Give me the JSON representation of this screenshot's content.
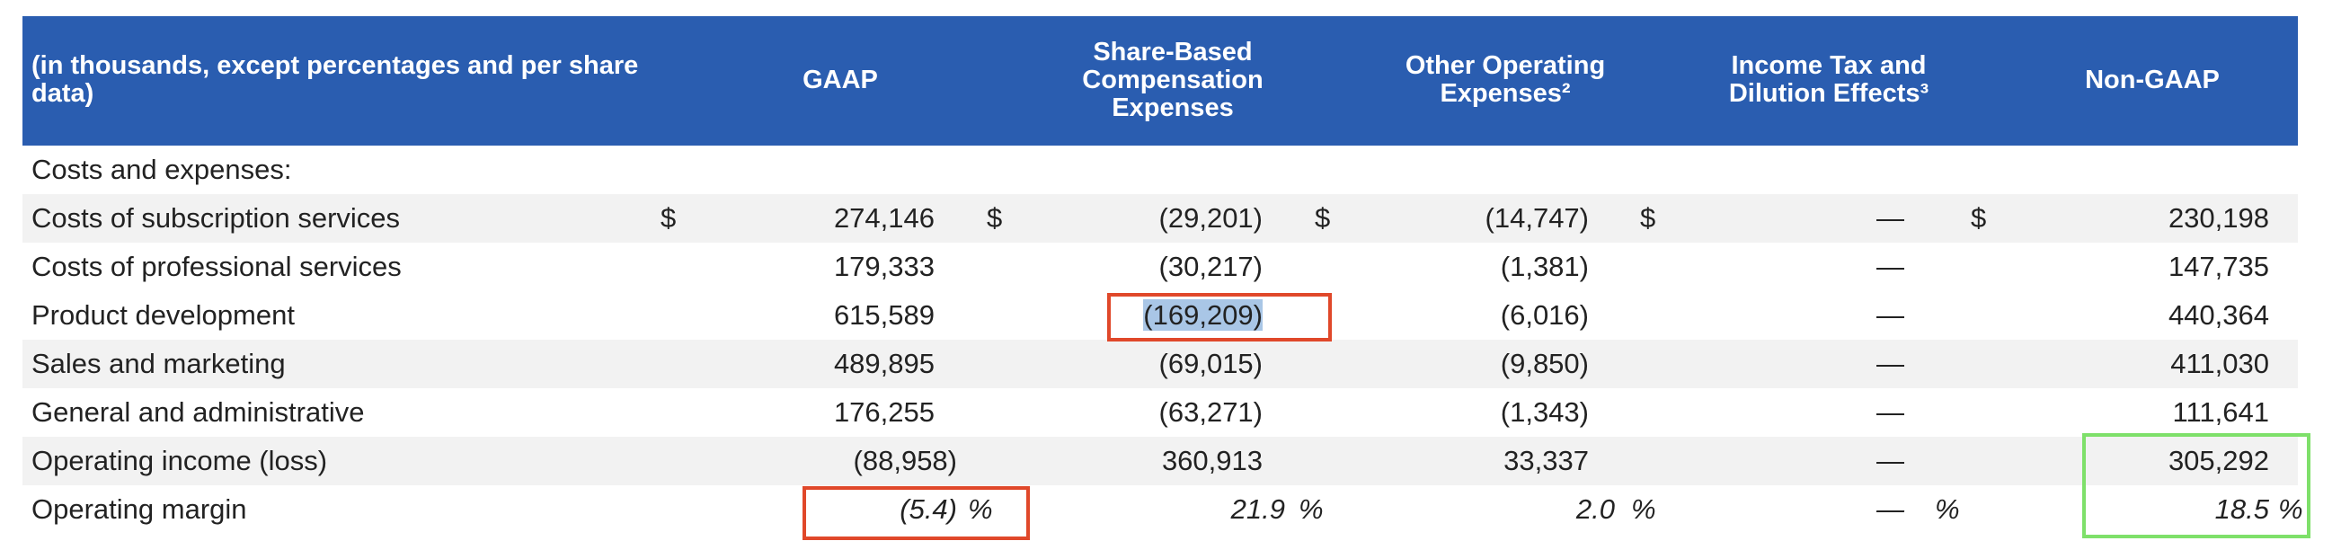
{
  "header": {
    "label_col": "(in thousands, except percentages and per share data)",
    "gaap": "GAAP",
    "sbc": "Share-Based Compensation Expenses",
    "other_op": "Other Operating Expenses²",
    "tax": "Income Tax and Dilution Effects³",
    "nongaap": "Non-GAAP"
  },
  "section_label": "Costs and expenses:",
  "dollar_sign": "$",
  "rows": [
    {
      "label": "Costs of subscription services",
      "gaap": "274,146",
      "sbc": "(29,201)",
      "other": "(14,747)",
      "tax": "—",
      "nongaap": "230,198"
    },
    {
      "label": "Costs of professional services",
      "gaap": "179,333",
      "sbc": "(30,217)",
      "other": "(1,381)",
      "tax": "—",
      "nongaap": "147,735"
    },
    {
      "label": "Product development",
      "gaap": "615,589",
      "sbc": "(169,209)",
      "other": "(6,016)",
      "tax": "—",
      "nongaap": "440,364"
    },
    {
      "label": "Sales and marketing",
      "gaap": "489,895",
      "sbc": "(69,015)",
      "other": "(9,850)",
      "tax": "—",
      "nongaap": "411,030"
    },
    {
      "label": "General and administrative",
      "gaap": "176,255",
      "sbc": "(63,271)",
      "other": "(1,343)",
      "tax": "—",
      "nongaap": "111,641"
    },
    {
      "label": "Operating income (loss)",
      "gaap": "(88,958)",
      "sbc": "360,913",
      "other": "33,337",
      "tax": "—",
      "nongaap": "305,292"
    }
  ],
  "margin": {
    "label": "Operating margin",
    "gaap": "(5.4)",
    "sbc": "21.9",
    "other": "2.0",
    "tax": "—",
    "nongaap": "18.5",
    "pct": "%"
  },
  "colors": {
    "header_bg": "#2a5db0",
    "stripe": "#f2f2f2",
    "red_box": "#e0482a",
    "green_box": "#7ee06a",
    "selection": "#a9c6e6"
  }
}
